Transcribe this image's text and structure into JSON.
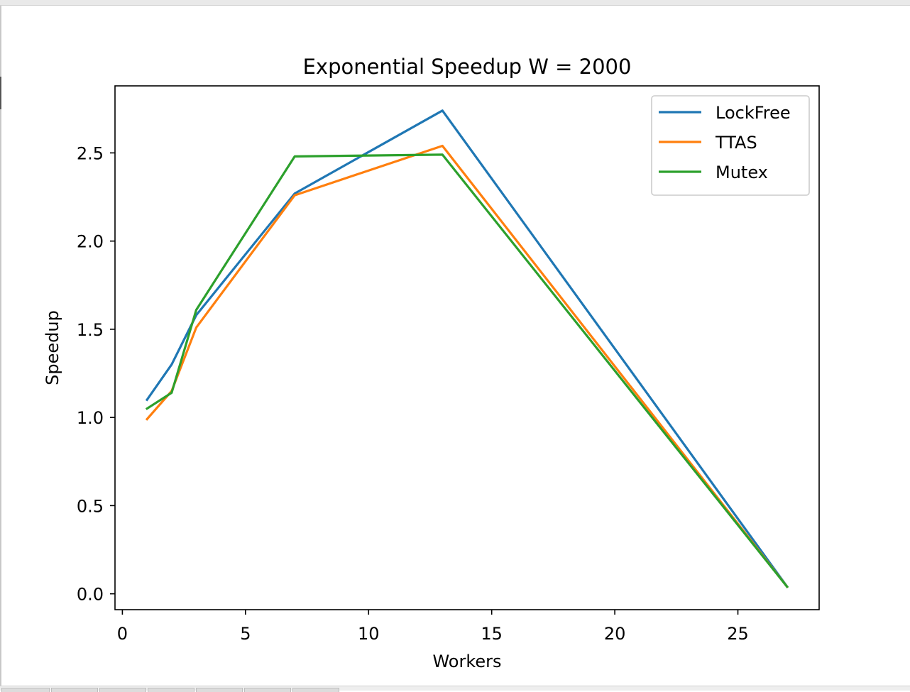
{
  "chart_data": {
    "type": "line",
    "title": "Exponential Speedup W = 2000",
    "xlabel": "Workers",
    "ylabel": "Speedup",
    "xlim": [
      -0.3,
      28.3
    ],
    "ylim": [
      -0.09,
      2.88
    ],
    "xticks": [
      0,
      5,
      10,
      15,
      20,
      25
    ],
    "xtick_labels": [
      "0",
      "5",
      "10",
      "15",
      "20",
      "25"
    ],
    "yticks": [
      0.0,
      0.5,
      1.0,
      1.5,
      2.0,
      2.5
    ],
    "ytick_labels": [
      "0.0",
      "0.5",
      "1.0",
      "1.5",
      "2.0",
      "2.5"
    ],
    "grid": false,
    "legend_position": "top-right",
    "x": [
      1,
      2,
      3,
      7,
      13,
      27
    ],
    "series": [
      {
        "name": "LockFree",
        "color": "#1f77b4",
        "values": [
          1.1,
          1.3,
          1.58,
          2.27,
          2.74,
          0.04
        ]
      },
      {
        "name": "TTAS",
        "color": "#ff7f0e",
        "values": [
          0.99,
          1.15,
          1.51,
          2.26,
          2.54,
          0.04
        ]
      },
      {
        "name": "Mutex",
        "color": "#2ca02c",
        "values": [
          1.05,
          1.14,
          1.61,
          2.48,
          2.49,
          0.04
        ]
      }
    ]
  }
}
